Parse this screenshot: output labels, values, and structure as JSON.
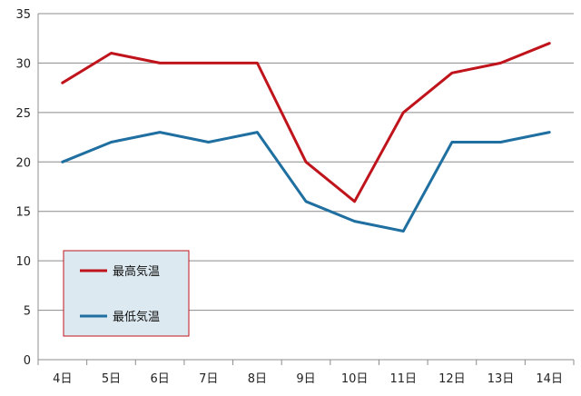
{
  "chart_data": {
    "type": "line",
    "categories": [
      "4日",
      "5日",
      "6日",
      "7日",
      "8日",
      "9日",
      "10日",
      "11日",
      "12日",
      "13日",
      "14日"
    ],
    "series": [
      {
        "name": "最高気温",
        "color": "#c0141c",
        "values": [
          28,
          31,
          30,
          30,
          30,
          20,
          16,
          25,
          29,
          30,
          32
        ]
      },
      {
        "name": "最低気温",
        "color": "#1f6fa0",
        "values": [
          20,
          22,
          23,
          22,
          23,
          16,
          14,
          13,
          22,
          22,
          23
        ]
      }
    ],
    "ylim": [
      0,
      35
    ],
    "yticks": [
      0,
      5,
      10,
      15,
      20,
      25,
      30,
      35
    ],
    "grid": true,
    "legend": {
      "position": "bottom-left",
      "background": "#dce9f1",
      "border": "#c0141c"
    }
  }
}
